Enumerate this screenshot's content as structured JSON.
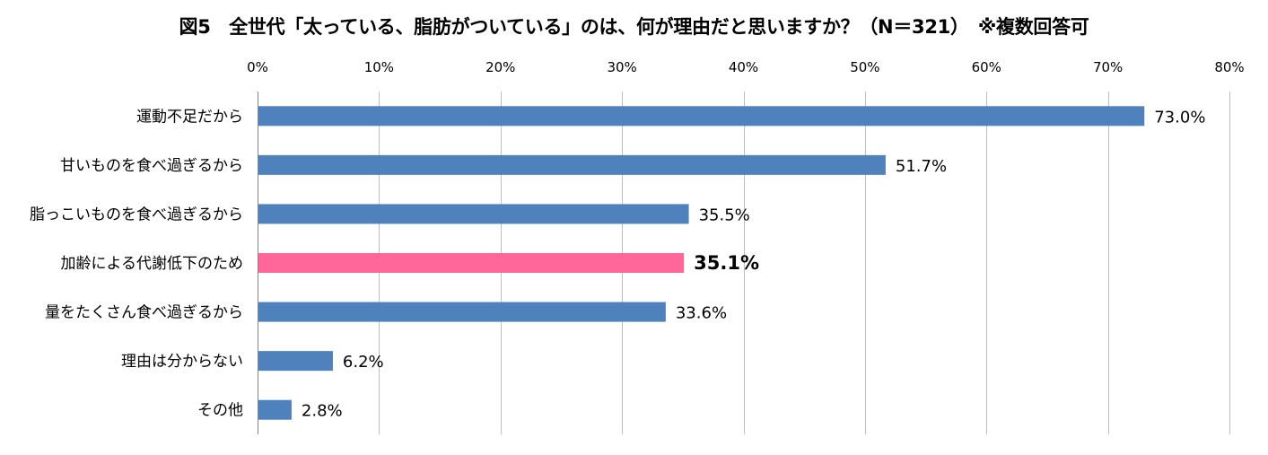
{
  "chart_data": {
    "type": "bar",
    "orientation": "horizontal",
    "title": "図5　全世代「太っている、脂肪がついている」のは、何が理由だと思いますか？（N＝321）　※複数回答可",
    "categories": [
      "運動不足だから",
      "甘いものを食べ過ぎるから",
      "脂っこいものを食べ過ぎるから",
      "加齢による代謝低下のため",
      "量をたくさん食べ過ぎるから",
      "理由は分からない",
      "その他"
    ],
    "values": [
      73.0,
      51.7,
      35.5,
      35.1,
      33.6,
      6.2,
      2.8
    ],
    "value_labels": [
      "73.0%",
      "51.7%",
      "35.5%",
      "35.1%",
      "33.6%",
      "6.2%",
      "2.8%"
    ],
    "highlight_index": 3,
    "xlim": [
      0,
      80
    ],
    "x_ticks": [
      0,
      10,
      20,
      30,
      40,
      50,
      60,
      70,
      80
    ],
    "x_tick_labels": [
      "0%",
      "10%",
      "20%",
      "30%",
      "40%",
      "50%",
      "60%",
      "70%",
      "80%"
    ],
    "x_axis_position": "top",
    "grid": true,
    "legend": "none",
    "colors": {
      "bar": "#4f81bd",
      "highlight": "#ff6699",
      "grid": "#bfbfbf"
    }
  }
}
